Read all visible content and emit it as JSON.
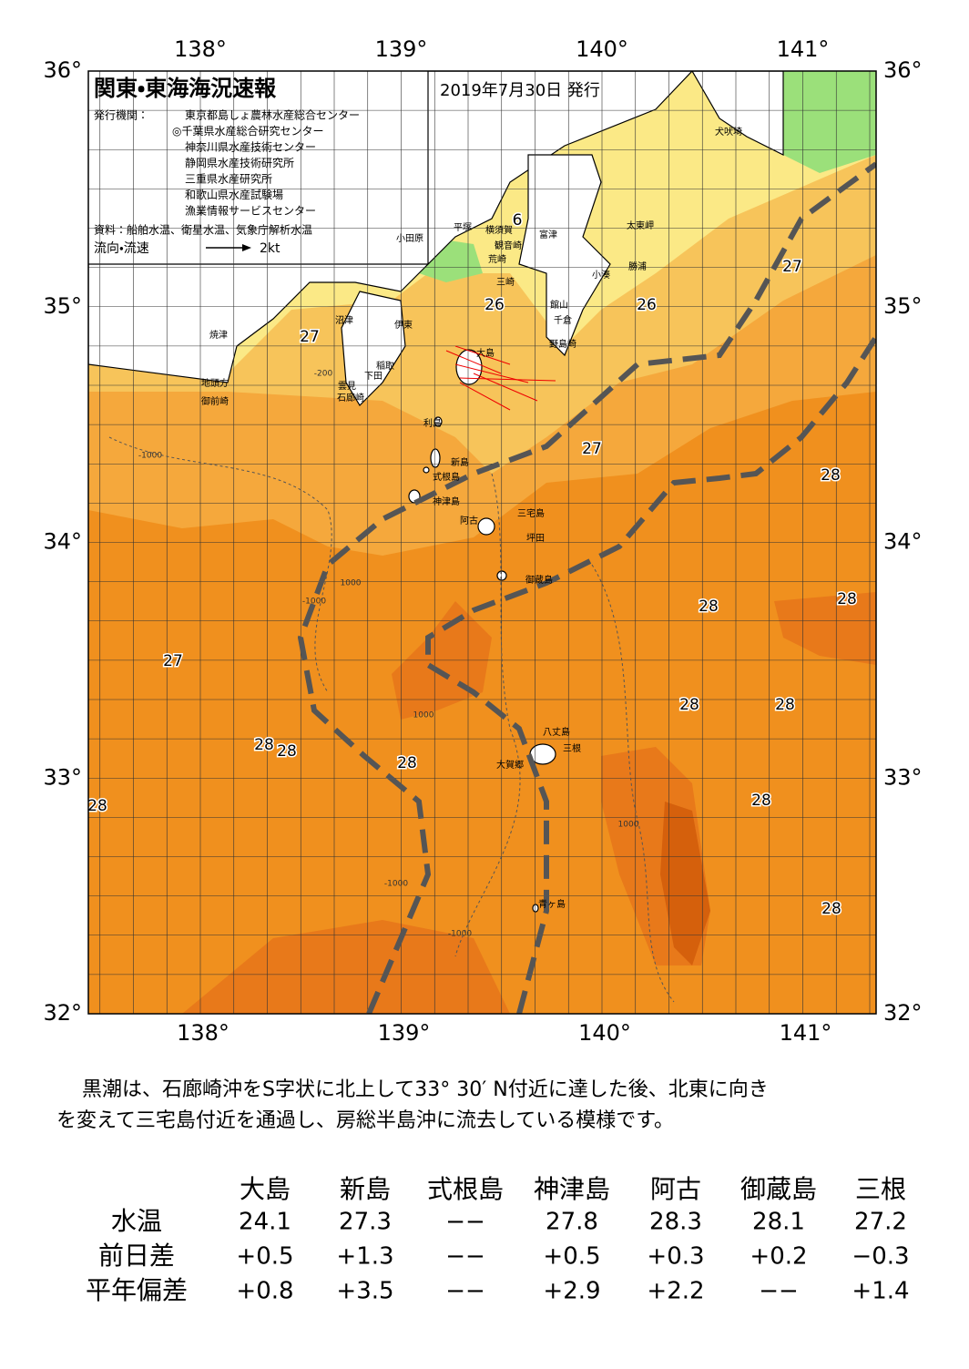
{
  "header": {
    "title": "関東・東海海況速報",
    "date": "2019年7月30日 発行",
    "publisher_label": "発行機関：",
    "publishers": [
      "東京都島しょ農林水産総合センター",
      "◎千葉県水産総合研究センター",
      "神奈川県水産技術センター",
      "静岡県水産技術研究所",
      "三重県水産研究所",
      "和歌山県水産試験場",
      "漁業情報サービスセンター"
    ],
    "source": "資料：船舶水温、衛星水温、気象庁解析水温",
    "legend_label": "流向・流速",
    "legend_speed": "2kt"
  },
  "map": {
    "lon_labels": [
      "138°",
      "139°",
      "140°",
      "141°"
    ],
    "lat_labels": [
      "36°",
      "35°",
      "34°",
      "33°",
      "32°"
    ],
    "places": [
      "犬吠埼",
      "太東岬",
      "富津",
      "横須賀",
      "平塚",
      "小田原",
      "観音崎",
      "荒崎",
      "勝浦",
      "小湊",
      "三崎",
      "館山",
      "千倉",
      "野島崎",
      "沼津",
      "伊東",
      "焼津",
      "大島",
      "稲取",
      "下田",
      "雲見",
      "石廊崎",
      "地頭方",
      "御前崎",
      "利島",
      "新島",
      "式根島",
      "神津島",
      "三宅島",
      "阿古",
      "坪田",
      "御蔵島",
      "八丈島",
      "三根",
      "大賀郷",
      "青ヶ島"
    ],
    "temperatures": [
      "27",
      "26",
      "26",
      "27",
      "6",
      "27",
      "28",
      "28",
      "28",
      "27",
      "28",
      "28",
      "28",
      "28",
      "28",
      "28",
      "28",
      "28"
    ],
    "contours": [
      "-1000",
      "1000",
      "-1000",
      "1000",
      "-1000",
      "-200",
      "1000",
      "-1000"
    ]
  },
  "description": [
    "黒潮は、石廊崎沖をS字状に北上して33° 30′ N付近に達した後、北東に向き",
    "を変えて三宅島付近を通過し、房総半島沖に流去している模様です。"
  ],
  "table": {
    "header": [
      "大島",
      "新島",
      "式根島",
      "神津島",
      "阿古",
      "御蔵島",
      "三根"
    ],
    "rows": [
      {
        "label": "水温",
        "values": [
          "24.1",
          "27.3",
          "−−",
          "27.8",
          "28.3",
          "28.1",
          "27.2"
        ]
      },
      {
        "label": "前日差",
        "values": [
          "+0.5",
          "+1.3",
          "−−",
          "+0.5",
          "+0.3",
          "+0.2",
          "−0.3"
        ]
      },
      {
        "label": "平年偏差",
        "values": [
          "+0.8",
          "+3.5",
          "−−",
          "+2.9",
          "+2.2",
          "−−",
          "+1.4"
        ]
      }
    ]
  }
}
